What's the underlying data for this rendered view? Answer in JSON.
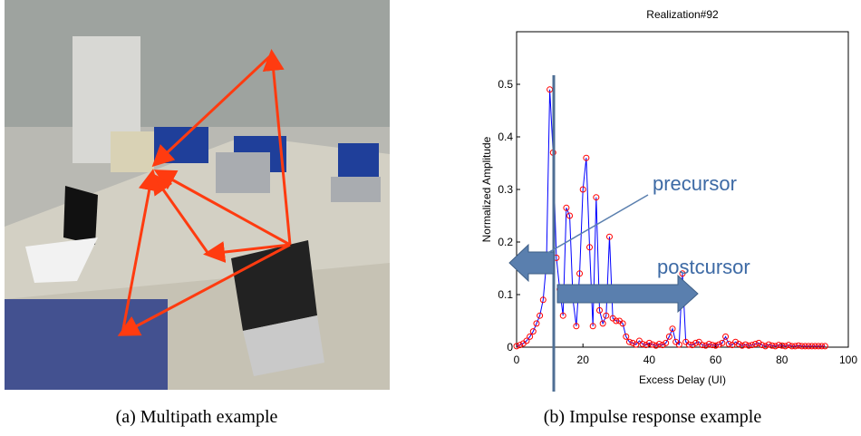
{
  "captions": [
    "(a) Multipath example",
    "(b) Impulse response example"
  ],
  "chart_data": {
    "type": "line",
    "title": "Realization#92",
    "x_label": "Excess Delay (UI)",
    "y_label": "Normalized Amplitude",
    "annotations": [
      "precursor",
      "postcursor"
    ],
    "x": [
      0,
      1,
      2,
      3,
      4,
      5,
      6,
      7,
      8,
      9,
      10,
      11,
      12,
      13,
      14,
      15,
      16,
      17,
      18,
      19,
      20,
      21,
      22,
      23,
      24,
      25,
      26,
      27,
      28,
      29,
      30,
      31,
      32,
      33,
      34,
      35,
      36,
      37,
      38,
      39,
      40,
      41,
      42,
      43,
      44,
      45,
      46,
      47,
      48,
      49,
      50,
      51,
      52,
      53,
      54,
      55,
      56,
      57,
      58,
      59,
      60,
      61,
      62,
      63,
      64,
      65,
      66,
      67,
      68,
      69,
      70,
      71,
      72,
      73,
      74,
      75,
      76,
      77,
      78,
      79,
      80,
      81,
      82,
      83,
      84,
      85,
      86,
      87,
      88,
      89,
      90,
      91,
      92,
      93
    ],
    "series": [
      {
        "color": "#0000ff",
        "marker_color": "#ff0000",
        "values": [
          0.002,
          0.004,
          0.007,
          0.012,
          0.02,
          0.03,
          0.045,
          0.06,
          0.09,
          0.16,
          0.49,
          0.37,
          0.17,
          0.11,
          0.06,
          0.265,
          0.25,
          0.09,
          0.04,
          0.14,
          0.3,
          0.36,
          0.19,
          0.04,
          0.285,
          0.07,
          0.045,
          0.06,
          0.21,
          0.055,
          0.05,
          0.05,
          0.045,
          0.02,
          0.01,
          0.008,
          0.005,
          0.012,
          0.006,
          0.004,
          0.008,
          0.005,
          0.003,
          0.006,
          0.004,
          0.008,
          0.02,
          0.035,
          0.01,
          0.005,
          0.14,
          0.01,
          0.005,
          0.004,
          0.008,
          0.01,
          0.004,
          0.003,
          0.006,
          0.004,
          0.003,
          0.005,
          0.008,
          0.02,
          0.006,
          0.004,
          0.01,
          0.006,
          0.003,
          0.005,
          0.003,
          0.004,
          0.006,
          0.008,
          0.004,
          0.002,
          0.005,
          0.003,
          0.002,
          0.004,
          0.003,
          0.002,
          0.004,
          0.002,
          0.002,
          0.003,
          0.002,
          0.002,
          0.002,
          0.002,
          0.002,
          0.002,
          0.002,
          0.002
        ]
      }
    ],
    "xlim": [
      0,
      100
    ],
    "xticks": [
      0,
      20,
      40,
      60,
      80,
      100
    ],
    "ylim": [
      0,
      0.6
    ],
    "yticks": [
      0,
      0.1,
      0.2,
      0.3,
      0.4,
      0.5
    ]
  }
}
